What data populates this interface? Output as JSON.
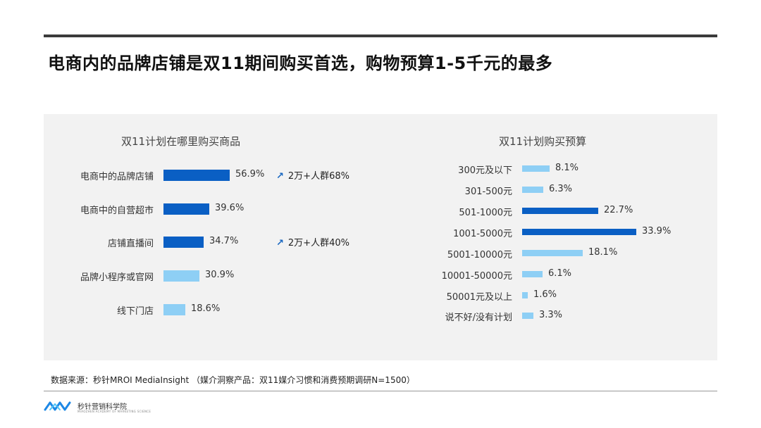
{
  "page": {
    "title": "电商内的品牌店铺是双11期间购买首选，购物预算1-5千元的最多",
    "source": "数据来源：秒针MROI MediaInsight （媒介洞察产品：双11媒介习惯和消费预期调研N=1500）",
    "logo_text": "秒针营销科学院",
    "logo_subtext": "MIAOZHEN ACADEMY OF MARKETING SCIENCE"
  },
  "colors": {
    "dark_bar": "#0a5fc4",
    "light_bar": "#8ecff5",
    "arrow": "#1565c0"
  },
  "chart_data": [
    {
      "type": "bar",
      "orientation": "horizontal",
      "title": "双11计划在哪里购买商品",
      "unit": "%",
      "categories": [
        "电商中的品牌店铺",
        "电商中的自营超市",
        "店铺直播间",
        "品牌小程序或官网",
        "线下门店"
      ],
      "values": [
        56.9,
        39.6,
        34.7,
        30.9,
        18.6
      ],
      "value_labels": [
        "56.9%",
        "39.6%",
        "34.7%",
        "30.9%",
        "18.6%"
      ],
      "highlight": [
        true,
        true,
        true,
        false,
        false
      ],
      "annotations": [
        {
          "category": "电商中的品牌店铺",
          "icon": "arrow-up-right",
          "text": "2万+人群68%"
        },
        {
          "category": "店铺直播间",
          "icon": "arrow-up-right",
          "text": "2万+人群40%"
        }
      ]
    },
    {
      "type": "bar",
      "orientation": "horizontal",
      "title": "双11计划购买预算",
      "unit": "%",
      "categories": [
        "300元及以下",
        "301-500元",
        "501-1000元",
        "1001-5000元",
        "5001-10000元",
        "10001-50000元",
        "50001元及以上",
        "说不好/没有计划"
      ],
      "values": [
        8.1,
        6.3,
        22.7,
        33.9,
        18.1,
        6.1,
        1.6,
        3.3
      ],
      "value_labels": [
        "8.1%",
        "6.3%",
        "22.7%",
        "33.9%",
        "18.1%",
        "6.1%",
        "1.6%",
        "3.3%"
      ],
      "highlight": [
        false,
        false,
        true,
        true,
        false,
        false,
        false,
        false
      ]
    }
  ]
}
